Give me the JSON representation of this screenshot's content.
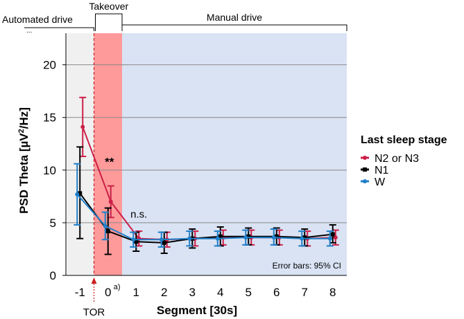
{
  "chart_data": {
    "type": "line",
    "xlabel": "Segment [30s]",
    "ylabel_main": "PSD Theta [µV",
    "ylabel_sup": "2",
    "ylabel_end": "/Hz]",
    "categories": [
      "-1",
      "0",
      "1",
      "2",
      "3",
      "4",
      "5",
      "6",
      "7",
      "8"
    ],
    "category_zero_sup": "a)",
    "ylim": [
      0,
      23
    ],
    "yticks": [
      0,
      5,
      10,
      15,
      20
    ],
    "grid": true,
    "legend_title": "Last sleep stage",
    "legend_position": "right",
    "series": [
      {
        "name": "N2 or N3",
        "color": "#cc1f47",
        "values": [
          14.1,
          7.0,
          3.5,
          3.4,
          3.5,
          3.6,
          3.6,
          3.6,
          3.5,
          3.6
        ],
        "ci_low": [
          11.3,
          5.5,
          2.8,
          2.7,
          2.8,
          2.9,
          2.9,
          2.9,
          2.8,
          2.9
        ],
        "ci_high": [
          16.9,
          8.5,
          4.2,
          4.1,
          4.2,
          4.3,
          4.3,
          4.3,
          4.2,
          4.3
        ]
      },
      {
        "name": "N1",
        "color": "#000000",
        "values": [
          7.8,
          4.2,
          3.2,
          3.1,
          3.5,
          3.7,
          3.7,
          3.7,
          3.6,
          3.9
        ],
        "ci_low": [
          3.5,
          2.0,
          2.3,
          2.1,
          2.6,
          2.8,
          2.9,
          2.9,
          2.8,
          3.1
        ],
        "ci_high": [
          12.2,
          6.4,
          4.1,
          4.1,
          4.4,
          4.6,
          4.5,
          4.5,
          4.4,
          4.8
        ]
      },
      {
        "name": "W",
        "color": "#1f7fc9",
        "values": [
          7.7,
          4.7,
          3.4,
          3.4,
          3.5,
          3.5,
          3.6,
          3.6,
          3.5,
          3.5
        ],
        "ci_low": [
          4.8,
          3.4,
          2.7,
          2.7,
          2.8,
          2.8,
          2.9,
          2.9,
          2.8,
          2.8
        ],
        "ci_high": [
          10.6,
          6.0,
          4.1,
          4.1,
          4.2,
          4.2,
          4.3,
          4.4,
          4.2,
          4.2
        ]
      }
    ],
    "annotations": {
      "significance": "**",
      "not_significant": "n.s.",
      "error_bars_note": "Error bars: 95% CI",
      "tor_label": "TOR"
    },
    "phases": [
      {
        "label": "Automated drive",
        "segments": [
          "-1"
        ],
        "color": "#f0f0f0"
      },
      {
        "label": "Takeover",
        "segments": [
          "0"
        ],
        "color": "#ff9a9a"
      },
      {
        "label": "Manual drive",
        "segments": [
          "1",
          "8"
        ],
        "color": "#d9e3f3"
      }
    ],
    "phase_ellipsis": "..."
  },
  "colors": {
    "tor": "#cc1f1f",
    "grid": "#888888"
  }
}
